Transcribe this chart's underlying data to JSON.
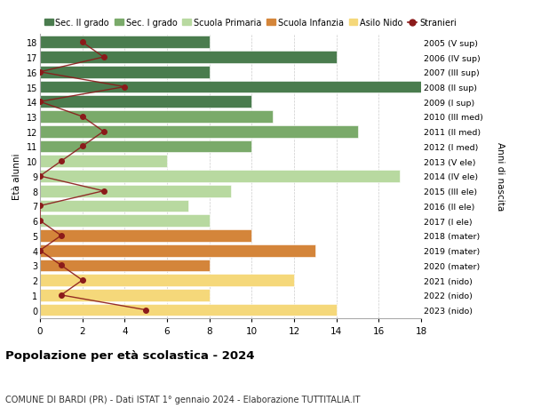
{
  "ages": [
    18,
    17,
    16,
    15,
    14,
    13,
    12,
    11,
    10,
    9,
    8,
    7,
    6,
    5,
    4,
    3,
    2,
    1,
    0
  ],
  "right_labels": [
    "2005 (V sup)",
    "2006 (IV sup)",
    "2007 (III sup)",
    "2008 (II sup)",
    "2009 (I sup)",
    "2010 (III med)",
    "2011 (II med)",
    "2012 (I med)",
    "2013 (V ele)",
    "2014 (IV ele)",
    "2015 (III ele)",
    "2016 (II ele)",
    "2017 (I ele)",
    "2018 (mater)",
    "2019 (mater)",
    "2020 (mater)",
    "2021 (nido)",
    "2022 (nido)",
    "2023 (nido)"
  ],
  "bar_values": [
    8,
    14,
    8,
    18,
    10,
    11,
    15,
    10,
    6,
    17,
    9,
    7,
    8,
    10,
    13,
    8,
    12,
    8,
    14
  ],
  "bar_colors": [
    "#4a7c4e",
    "#4a7c4e",
    "#4a7c4e",
    "#4a7c4e",
    "#4a7c4e",
    "#7aaa6a",
    "#7aaa6a",
    "#7aaa6a",
    "#b8d9a0",
    "#b8d9a0",
    "#b8d9a0",
    "#b8d9a0",
    "#b8d9a0",
    "#d4853a",
    "#d4853a",
    "#d4853a",
    "#f5d87a",
    "#f5d87a",
    "#f5d87a"
  ],
  "stranieri_values": [
    2,
    3,
    0,
    4,
    0,
    2,
    3,
    2,
    1,
    0,
    3,
    0,
    0,
    1,
    0,
    1,
    2,
    1,
    5
  ],
  "stranieri_color": "#8b1a1a",
  "legend_items": [
    {
      "label": "Sec. II grado",
      "color": "#4a7c4e",
      "type": "patch"
    },
    {
      "label": "Sec. I grado",
      "color": "#7aaa6a",
      "type": "patch"
    },
    {
      "label": "Scuola Primaria",
      "color": "#b8d9a0",
      "type": "patch"
    },
    {
      "label": "Scuola Infanzia",
      "color": "#d4853a",
      "type": "patch"
    },
    {
      "label": "Asilo Nido",
      "color": "#f5d87a",
      "type": "patch"
    },
    {
      "label": "Stranieri",
      "color": "#8b1a1a",
      "type": "line"
    }
  ],
  "ylabel": "Età alunni",
  "right_ylabel": "Anni di nascita",
  "title": "Popolazione per età scolastica - 2024",
  "subtitle": "COMUNE DI BARDI (PR) - Dati ISTAT 1° gennaio 2024 - Elaborazione TUTTITALIA.IT",
  "xlim": [
    0,
    18
  ],
  "xticks": [
    0,
    2,
    4,
    6,
    8,
    10,
    12,
    14,
    16,
    18
  ],
  "background_color": "#ffffff",
  "grid_color": "#cccccc",
  "bar_height": 0.82
}
